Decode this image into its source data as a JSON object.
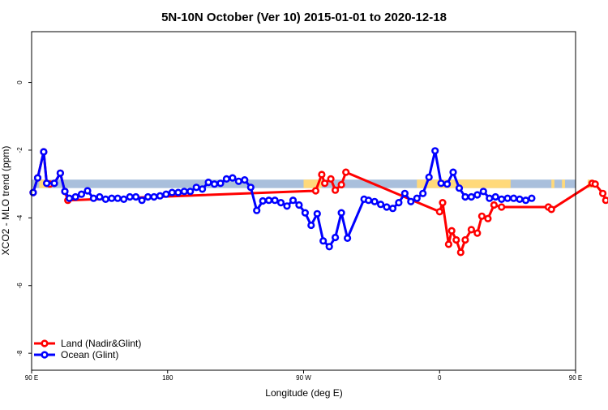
{
  "chart_data": {
    "type": "line",
    "title": "5N-10N October (Ver 10)   2015-01-01 to 2020-12-18",
    "xlabel": "Longitude (deg E)",
    "ylabel": "XCO2 - MLO trend (ppm)",
    "xlim": [
      90,
      450
    ],
    "ylim": [
      -8.5,
      1.5
    ],
    "x_ticks": [
      {
        "value": 90,
        "label": "90 E"
      },
      {
        "value": 180,
        "label": "180"
      },
      {
        "value": 270,
        "label": "90 W"
      },
      {
        "value": 360,
        "label": "0"
      },
      {
        "value": 450,
        "label": "90 E"
      },
      {
        "value": 540,
        "label": "180"
      }
    ],
    "y_ticks": [
      {
        "value": 0,
        "label": "0"
      },
      {
        "value": -2,
        "label": "-2"
      },
      {
        "value": -4,
        "label": "-4"
      },
      {
        "value": -6,
        "label": "-6"
      },
      {
        "value": -8,
        "label": "-8"
      }
    ],
    "background_band": {
      "y_top": -2.87,
      "y_bottom": -3.12,
      "color": "#a9bfdc",
      "land_color": "#ffd97a",
      "land_segments": [
        [
          95,
          100
        ],
        [
          270,
          282
        ],
        [
          345,
          407
        ],
        [
          434,
          436
        ],
        [
          441,
          443
        ],
        [
          458,
          461
        ]
      ]
    },
    "series": [
      {
        "name": "Land (Nadir&Glint)",
        "color": "#ff0000",
        "points": [
          [
            91,
            -3.25
          ],
          [
            94,
            -2.82
          ],
          [
            98,
            -2.05
          ],
          [
            100,
            -2.98
          ],
          [
            102,
            -3.0
          ],
          [
            105,
            -2.98
          ],
          [
            109,
            -2.68
          ],
          [
            112,
            -3.22
          ],
          [
            114,
            -3.48
          ],
          [
            278,
            -3.2
          ],
          [
            282,
            -2.72
          ],
          [
            284,
            -2.98
          ],
          [
            288,
            -2.85
          ],
          [
            291,
            -3.18
          ],
          [
            295,
            -3.02
          ],
          [
            298,
            -2.65
          ],
          [
            360,
            -3.82
          ],
          [
            362,
            -3.55
          ],
          [
            366,
            -4.78
          ],
          [
            368,
            -4.38
          ],
          [
            371,
            -4.65
          ],
          [
            374,
            -5.02
          ],
          [
            377,
            -4.65
          ],
          [
            381,
            -4.35
          ],
          [
            385,
            -4.45
          ],
          [
            388,
            -3.95
          ],
          [
            392,
            -4.02
          ],
          [
            396,
            -3.62
          ],
          [
            401,
            -3.68
          ],
          [
            432,
            -3.68
          ],
          [
            434,
            -3.75
          ],
          [
            461,
            -2.98
          ],
          [
            463,
            -3.0
          ],
          [
            468,
            -3.28
          ],
          [
            470,
            -3.48
          ]
        ]
      },
      {
        "name": "Ocean (Glint)",
        "color": "#0000ff",
        "points": [
          [
            91,
            -3.25
          ],
          [
            94,
            -2.82
          ],
          [
            98,
            -2.05
          ],
          [
            100,
            -2.98
          ],
          [
            105,
            -2.98
          ],
          [
            109,
            -2.68
          ],
          [
            112,
            -3.22
          ],
          [
            115,
            -3.42
          ],
          [
            119,
            -3.38
          ],
          [
            123,
            -3.3
          ],
          [
            127,
            -3.2
          ],
          [
            131,
            -3.42
          ],
          [
            135,
            -3.38
          ],
          [
            139,
            -3.45
          ],
          [
            143,
            -3.42
          ],
          [
            147,
            -3.42
          ],
          [
            151,
            -3.45
          ],
          [
            155,
            -3.38
          ],
          [
            159,
            -3.38
          ],
          [
            163,
            -3.48
          ],
          [
            167,
            -3.38
          ],
          [
            171,
            -3.38
          ],
          [
            175,
            -3.35
          ],
          [
            179,
            -3.3
          ],
          [
            183,
            -3.25
          ],
          [
            187,
            -3.25
          ],
          [
            191,
            -3.22
          ],
          [
            195,
            -3.22
          ],
          [
            199,
            -3.1
          ],
          [
            203,
            -3.15
          ],
          [
            207,
            -2.95
          ],
          [
            211,
            -3.0
          ],
          [
            215,
            -2.98
          ],
          [
            219,
            -2.85
          ],
          [
            223,
            -2.82
          ],
          [
            227,
            -2.92
          ],
          [
            231,
            -2.88
          ],
          [
            235,
            -3.1
          ],
          [
            239,
            -3.78
          ],
          [
            243,
            -3.5
          ],
          [
            247,
            -3.48
          ],
          [
            251,
            -3.48
          ],
          [
            255,
            -3.55
          ],
          [
            259,
            -3.65
          ],
          [
            263,
            -3.48
          ],
          [
            267,
            -3.62
          ],
          [
            271,
            -3.85
          ],
          [
            275,
            -4.22
          ],
          [
            279,
            -3.88
          ],
          [
            283,
            -4.68
          ],
          [
            287,
            -4.85
          ],
          [
            291,
            -4.58
          ],
          [
            295,
            -3.85
          ],
          [
            299,
            -4.6
          ],
          [
            310,
            -3.45
          ],
          [
            313,
            -3.48
          ],
          [
            317,
            -3.52
          ],
          [
            321,
            -3.6
          ],
          [
            325,
            -3.68
          ],
          [
            329,
            -3.72
          ],
          [
            333,
            -3.55
          ],
          [
            337,
            -3.28
          ],
          [
            341,
            -3.52
          ],
          [
            345,
            -3.42
          ],
          [
            349,
            -3.28
          ],
          [
            353,
            -2.8
          ],
          [
            357,
            -2.02
          ],
          [
            361,
            -2.98
          ],
          [
            365,
            -3.0
          ],
          [
            369,
            -2.65
          ],
          [
            373,
            -3.12
          ],
          [
            377,
            -3.38
          ],
          [
            381,
            -3.38
          ],
          [
            385,
            -3.32
          ],
          [
            389,
            -3.22
          ],
          [
            393,
            -3.42
          ],
          [
            397,
            -3.38
          ],
          [
            401,
            -3.45
          ],
          [
            405,
            -3.42
          ],
          [
            409,
            -3.42
          ],
          [
            413,
            -3.45
          ],
          [
            417,
            -3.48
          ],
          [
            421,
            -3.42
          ]
        ]
      }
    ],
    "legend": {
      "position": "bottom-left",
      "entries": [
        "Land (Nadir&Glint)",
        "Ocean (Glint)"
      ]
    }
  }
}
